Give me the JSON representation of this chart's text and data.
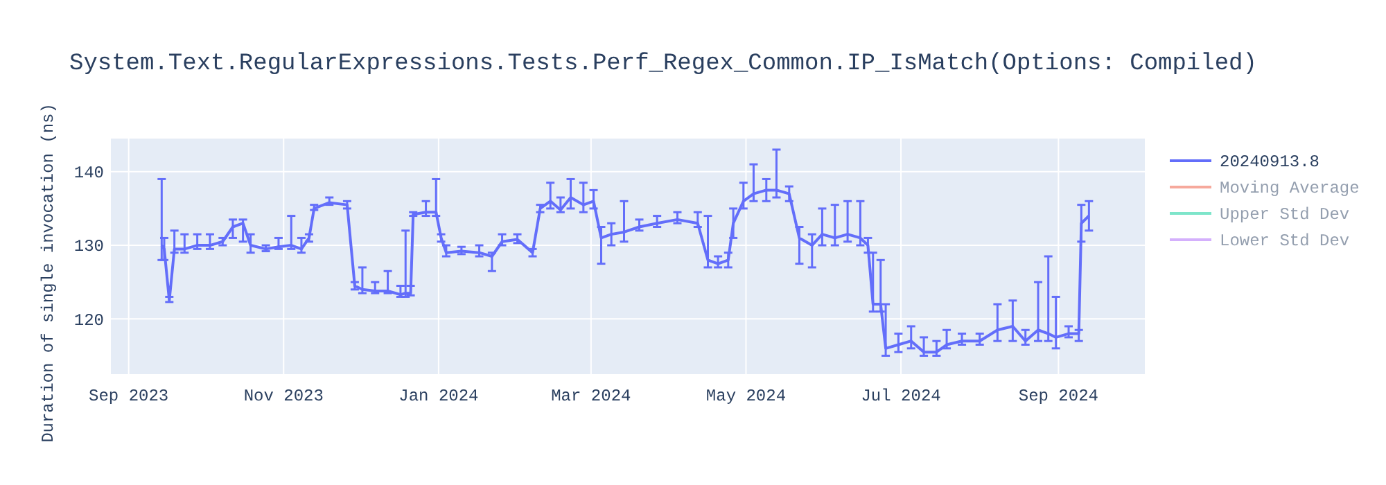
{
  "chart_data": {
    "type": "line",
    "title": "System.Text.RegularExpressions.Tests.Perf_Regex_Common.IP_IsMatch(Options: Compiled)",
    "ylabel": "Duration of single invocation (ns)",
    "x": [
      "2023-09-14",
      "2023-09-15",
      "2023-09-17",
      "2023-09-19",
      "2023-09-23",
      "2023-09-28",
      "2023-10-03",
      "2023-10-08",
      "2023-10-12",
      "2023-10-16",
      "2023-10-19",
      "2023-10-25",
      "2023-10-30",
      "2023-11-04",
      "2023-11-08",
      "2023-11-11",
      "2023-11-13",
      "2023-11-19",
      "2023-11-26",
      "2023-11-29",
      "2023-12-02",
      "2023-12-07",
      "2023-12-12",
      "2023-12-17",
      "2023-12-19",
      "2023-12-21",
      "2023-12-22",
      "2023-12-27",
      "2023-12-31",
      "2024-01-02",
      "2024-01-04",
      "2024-01-10",
      "2024-01-17",
      "2024-01-22",
      "2024-01-26",
      "2024-02-01",
      "2024-02-07",
      "2024-02-10",
      "2024-02-14",
      "2024-02-18",
      "2024-02-22",
      "2024-02-27",
      "2024-03-02",
      "2024-03-05",
      "2024-03-09",
      "2024-03-14",
      "2024-03-20",
      "2024-03-27",
      "2024-04-04",
      "2024-04-12",
      "2024-04-16",
      "2024-04-20",
      "2024-04-24",
      "2024-04-26",
      "2024-04-30",
      "2024-05-04",
      "2024-05-09",
      "2024-05-13",
      "2024-05-18",
      "2024-05-22",
      "2024-05-27",
      "2024-05-31",
      "2024-06-05",
      "2024-06-10",
      "2024-06-15",
      "2024-06-18",
      "2024-06-20",
      "2024-06-23",
      "2024-06-25",
      "2024-06-30",
      "2024-07-05",
      "2024-07-10",
      "2024-07-15",
      "2024-07-19",
      "2024-07-25",
      "2024-08-01",
      "2024-08-08",
      "2024-08-14",
      "2024-08-19",
      "2024-08-24",
      "2024-08-28",
      "2024-08-31",
      "2024-09-05",
      "2024-09-09",
      "2024-09-10",
      "2024-09-13"
    ],
    "series": [
      {
        "name": "20240913.8",
        "color": "#636efa",
        "values": [
          130,
          129.5,
          122.5,
          129.5,
          129.5,
          130,
          130,
          130.5,
          132.5,
          133,
          130,
          129.5,
          129.8,
          130,
          129.5,
          131,
          135,
          135.8,
          135.5,
          124.5,
          124,
          123.8,
          123.8,
          123.3,
          123.5,
          123.5,
          134.2,
          134.5,
          134.5,
          131,
          129,
          129.2,
          129,
          128.5,
          130.5,
          130.8,
          129,
          135,
          136,
          134.8,
          136.5,
          135.5,
          136,
          131,
          131.5,
          131.8,
          132.5,
          133,
          133.5,
          133,
          128,
          127.5,
          128,
          133,
          136,
          137,
          137.5,
          137.5,
          137,
          131,
          130,
          131.5,
          131,
          131.5,
          131,
          130,
          122,
          122,
          116,
          116.5,
          117,
          115.5,
          115.5,
          116.5,
          117,
          117,
          118.5,
          119,
          117,
          118.5,
          118,
          117.5,
          118,
          118,
          133,
          134
        ],
        "errors": [
          [
            128,
            139
          ],
          [
            128,
            131
          ],
          [
            122.3,
            123
          ],
          [
            129,
            132
          ],
          [
            129,
            131.5
          ],
          [
            129.5,
            131.5
          ],
          [
            129.5,
            131.5
          ],
          [
            130,
            131
          ],
          [
            131,
            133.5
          ],
          [
            130.5,
            133.5
          ],
          [
            129,
            131.5
          ],
          [
            129.2,
            130
          ],
          [
            129.5,
            131
          ],
          [
            129.5,
            134
          ],
          [
            129,
            131
          ],
          [
            130.5,
            131.5
          ],
          [
            134.8,
            135.5
          ],
          [
            135.5,
            136.5
          ],
          [
            135,
            136
          ],
          [
            124,
            125
          ],
          [
            123.5,
            127
          ],
          [
            123.5,
            125
          ],
          [
            123.5,
            126.5
          ],
          [
            123,
            124.5
          ],
          [
            123,
            132
          ],
          [
            123.2,
            124.5
          ],
          [
            134,
            134.5
          ],
          [
            134,
            136
          ],
          [
            134,
            139
          ],
          [
            130.5,
            131.5
          ],
          [
            128.5,
            130
          ],
          [
            128.8,
            129.8
          ],
          [
            128.5,
            130
          ],
          [
            126.5,
            129
          ],
          [
            130,
            131.5
          ],
          [
            130.3,
            131.5
          ],
          [
            128.5,
            129.5
          ],
          [
            134.5,
            135.5
          ],
          [
            135,
            138.5
          ],
          [
            134.5,
            136.5
          ],
          [
            135,
            139
          ],
          [
            134.5,
            138.5
          ],
          [
            135,
            137.5
          ],
          [
            127.5,
            132.5
          ],
          [
            130,
            133
          ],
          [
            130.5,
            136
          ],
          [
            132,
            133.5
          ],
          [
            132.5,
            134
          ],
          [
            133,
            134.5
          ],
          [
            132.5,
            134.5
          ],
          [
            127,
            134
          ],
          [
            127,
            128.5
          ],
          [
            127,
            129
          ],
          [
            131,
            135
          ],
          [
            135,
            138.5
          ],
          [
            136,
            141
          ],
          [
            136,
            139
          ],
          [
            136.5,
            143
          ],
          [
            136,
            138
          ],
          [
            127.5,
            132.5
          ],
          [
            127,
            131.5
          ],
          [
            130,
            135
          ],
          [
            130,
            135.5
          ],
          [
            130.5,
            136
          ],
          [
            130,
            136
          ],
          [
            129,
            131
          ],
          [
            121,
            129
          ],
          [
            121,
            128
          ],
          [
            115,
            122
          ],
          [
            115.5,
            118
          ],
          [
            116,
            119
          ],
          [
            115,
            117.5
          ],
          [
            115,
            117
          ],
          [
            116,
            118.5
          ],
          [
            116.5,
            118
          ],
          [
            116.5,
            118
          ],
          [
            117,
            122
          ],
          [
            117,
            122.5
          ],
          [
            116.5,
            118.5
          ],
          [
            117,
            125
          ],
          [
            117,
            128.5
          ],
          [
            116,
            123
          ],
          [
            117.5,
            119
          ],
          [
            117,
            118.5
          ],
          [
            130.5,
            135.5
          ],
          [
            132,
            136
          ]
        ]
      },
      {
        "name": "Moving Average",
        "color": "#ef553b",
        "values": [
          null,
          null,
          null,
          null,
          null,
          null,
          null,
          null,
          null,
          null,
          null,
          null,
          null,
          null,
          null,
          null,
          null,
          null,
          null,
          null,
          null,
          null,
          null,
          null,
          null,
          null,
          null,
          null,
          null,
          null,
          null,
          null,
          null,
          null,
          null,
          null,
          null,
          null,
          null,
          null,
          null,
          null,
          null,
          null,
          null,
          null,
          null,
          null,
          null,
          null,
          null,
          null,
          null,
          null,
          null,
          null,
          null,
          null,
          null,
          null,
          null,
          null,
          null,
          null,
          null,
          null,
          null,
          null,
          null,
          null,
          null,
          null,
          null,
          null,
          null,
          null,
          null,
          null,
          null,
          null,
          null,
          null,
          null,
          null,
          null,
          null
        ]
      },
      {
        "name": "Upper Std Dev",
        "color": "#00cc96",
        "values": [
          null,
          null,
          null,
          null,
          null,
          null,
          null,
          null,
          null,
          null,
          null,
          null,
          null,
          null,
          null,
          null,
          null,
          null,
          null,
          null,
          null,
          null,
          null,
          null,
          null,
          null,
          null,
          null,
          null,
          null,
          null,
          null,
          null,
          null,
          null,
          null,
          null,
          null,
          null,
          null,
          null,
          null,
          null,
          null,
          null,
          null,
          null,
          null,
          null,
          null,
          null,
          null,
          null,
          null,
          null,
          null,
          null,
          null,
          null,
          null,
          null,
          null,
          null,
          null,
          null,
          null,
          null,
          null,
          null,
          null,
          null,
          null,
          null,
          null,
          null,
          null,
          null,
          null,
          null,
          null,
          null,
          null,
          null,
          null,
          null,
          null
        ]
      },
      {
        "name": "Lower Std Dev",
        "color": "#ab63fa",
        "values": [
          null,
          null,
          null,
          null,
          null,
          null,
          null,
          null,
          null,
          null,
          null,
          null,
          null,
          null,
          null,
          null,
          null,
          null,
          null,
          null,
          null,
          null,
          null,
          null,
          null,
          null,
          null,
          null,
          null,
          null,
          null,
          null,
          null,
          null,
          null,
          null,
          null,
          null,
          null,
          null,
          null,
          null,
          null,
          null,
          null,
          null,
          null,
          null,
          null,
          null,
          null,
          null,
          null,
          null,
          null,
          null,
          null,
          null,
          null,
          null,
          null,
          null,
          null,
          null,
          null,
          null,
          null,
          null,
          null,
          null,
          null,
          null,
          null,
          null,
          null,
          null,
          null,
          null,
          null,
          null,
          null,
          null,
          null,
          null,
          null,
          null
        ]
      }
    ],
    "xlim": [
      "2023-08-25",
      "2024-10-05"
    ],
    "xticks": [
      {
        "value": "2023-09-01",
        "label": "Sep 2023"
      },
      {
        "value": "2023-11-01",
        "label": "Nov 2023"
      },
      {
        "value": "2024-01-01",
        "label": "Jan 2024"
      },
      {
        "value": "2024-03-01",
        "label": "Mar 2024"
      },
      {
        "value": "2024-05-01",
        "label": "May 2024"
      },
      {
        "value": "2024-07-01",
        "label": "Jul 2024"
      },
      {
        "value": "2024-09-01",
        "label": "Sep 2024"
      }
    ],
    "ylim": [
      112.5,
      144.5
    ],
    "yticks": [
      120,
      130,
      140
    ],
    "grid": true,
    "legend": "top right",
    "line_style": "solid",
    "marker": "none"
  }
}
